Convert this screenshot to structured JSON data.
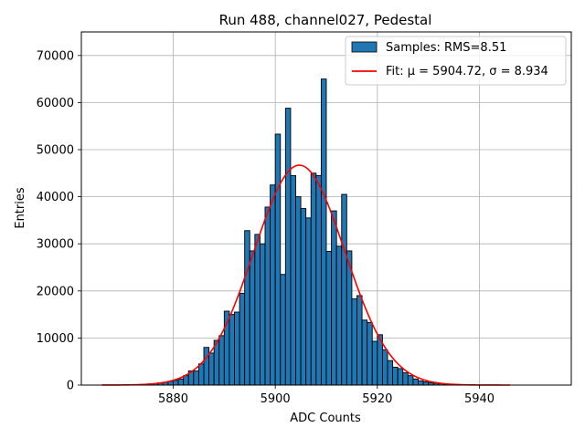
{
  "chart_data": {
    "type": "bar",
    "title": "Run 488, channel027, Pedestal",
    "xlabel": "ADC Counts",
    "ylabel": "Entries",
    "xlim": [
      5862,
      5958
    ],
    "ylim": [
      0,
      75000
    ],
    "xticks": [
      5880,
      5900,
      5920,
      5940
    ],
    "yticks": [
      0,
      10000,
      20000,
      30000,
      40000,
      50000,
      60000,
      70000
    ],
    "grid": true,
    "legend_position": "top-right",
    "histogram": {
      "name": "Samples: RMS=8.51",
      "color": "#1f77b4",
      "bin_width": 1,
      "bins": [
        [
          5873,
          100
        ],
        [
          5874,
          150
        ],
        [
          5875,
          250
        ],
        [
          5876,
          300
        ],
        [
          5877,
          500
        ],
        [
          5878,
          600
        ],
        [
          5879,
          800
        ],
        [
          5880,
          1000
        ],
        [
          5881,
          1300
        ],
        [
          5882,
          2000
        ],
        [
          5883,
          3000
        ],
        [
          5884,
          3000
        ],
        [
          5885,
          4500
        ],
        [
          5886,
          8000
        ],
        [
          5887,
          6800
        ],
        [
          5888,
          9500
        ],
        [
          5889,
          10500
        ],
        [
          5890,
          15700
        ],
        [
          5891,
          15000
        ],
        [
          5892,
          15500
        ],
        [
          5893,
          19500
        ],
        [
          5894,
          32800
        ],
        [
          5895,
          28500
        ],
        [
          5896,
          32000
        ],
        [
          5897,
          30000
        ],
        [
          5898,
          37800
        ],
        [
          5899,
          42500
        ],
        [
          5900,
          53300
        ],
        [
          5901,
          23500
        ],
        [
          5902,
          58800
        ],
        [
          5903,
          44500
        ],
        [
          5904,
          40000
        ],
        [
          5905,
          37500
        ],
        [
          5906,
          35500
        ],
        [
          5907,
          45000
        ],
        [
          5908,
          44500
        ],
        [
          5909,
          65000
        ],
        [
          5910,
          28400
        ],
        [
          5911,
          37000
        ],
        [
          5912,
          29500
        ],
        [
          5913,
          40500
        ],
        [
          5914,
          28500
        ],
        [
          5915,
          18300
        ],
        [
          5916,
          19000
        ],
        [
          5917,
          13800
        ],
        [
          5918,
          13300
        ],
        [
          5919,
          9300
        ],
        [
          5920,
          10700
        ],
        [
          5921,
          7500
        ],
        [
          5922,
          5200
        ],
        [
          5923,
          3800
        ],
        [
          5924,
          3500
        ],
        [
          5925,
          2600
        ],
        [
          5926,
          2000
        ],
        [
          5927,
          1300
        ],
        [
          5928,
          900
        ],
        [
          5929,
          700
        ],
        [
          5930,
          500
        ],
        [
          5931,
          400
        ],
        [
          5932,
          300
        ],
        [
          5933,
          200
        ],
        [
          5934,
          150
        ],
        [
          5935,
          100
        ],
        [
          5936,
          80
        ],
        [
          5937,
          50
        ],
        [
          5938,
          30
        ]
      ]
    },
    "fit": {
      "name": "Fit: μ = 5904.72, σ = 8.934",
      "color": "#ff0000",
      "mu": 5904.72,
      "sigma": 8.934,
      "amplitude": 46700,
      "x_range": [
        5866,
        5946
      ]
    }
  }
}
